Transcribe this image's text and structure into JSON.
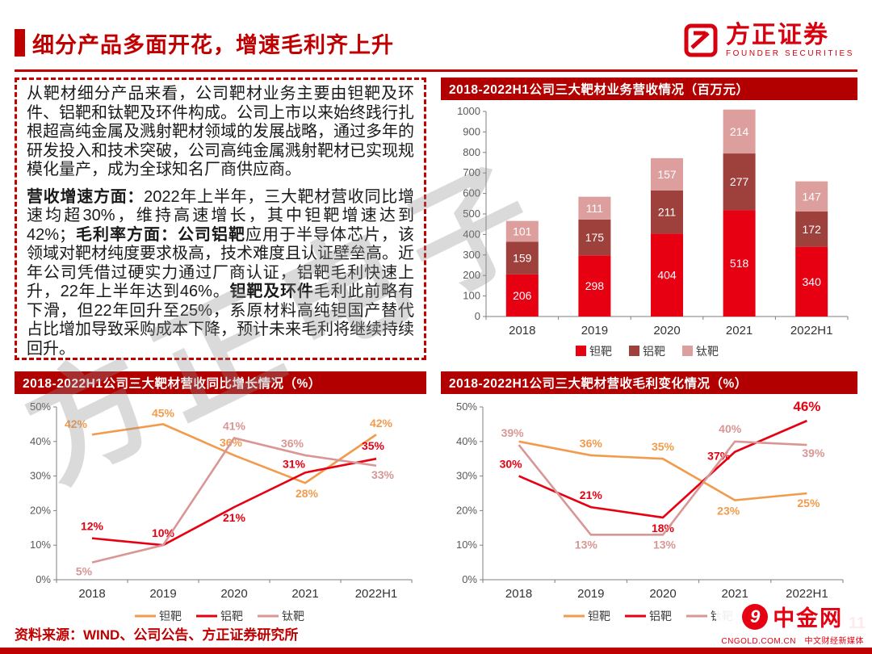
{
  "header": {
    "title": "细分产品多面开花，增速毛利齐上升",
    "logo_text": "方正证券",
    "logo_subtext": "FOUNDER SECURITIES"
  },
  "text_panel": {
    "paragraphs": [
      {
        "runs": [
          {
            "t": "从靶材细分产品来看，公司靶材业务主要由钽靶及环件、铝靶和钛靶及环件构成。公司上市以来始终践行扎根超高纯金属及溅射靶材领域的发展战略，通过多年的研发投入和技术突破，公司高纯金属溅射靶材已实现规模化量产，成为全球知名厂商供应商。",
            "b": false
          }
        ]
      },
      {
        "runs": [
          {
            "t": "营收增速方面：",
            "b": true
          },
          {
            "t": "2022年上半年，三大靶材营收同比增速均超30%，维持高速增长，其中钽靶增速达到42%；",
            "b": false
          },
          {
            "t": "毛利率方面：公司铝靶",
            "b": true
          },
          {
            "t": "应用于半导体芯片，该领域对靶材纯度要求极高，技术难度且认证壁垒高。近年公司凭借过硬实力通过厂商认证，铝靶毛利快速上升，22年上半年达到46%。",
            "b": false
          },
          {
            "t": "钽靶及环件",
            "b": true
          },
          {
            "t": "毛利此前略有下滑，但22年回升至25%，系原材料高纯钽国产替代占比增加导致采购成本下降，预计未来毛利将继续持续回升。",
            "b": false
          }
        ]
      }
    ]
  },
  "chart_data": [
    {
      "id": "revenue_bar",
      "type": "bar",
      "stacked": true,
      "title": "2018-2022H1公司三大靶材业务营收情况（百万元）",
      "categories": [
        "2018",
        "2019",
        "2020",
        "2021",
        "2022H1"
      ],
      "series": [
        {
          "name": "钽靶",
          "color": "#e60012",
          "values": [
            206,
            298,
            404,
            518,
            340
          ]
        },
        {
          "name": "铝靶",
          "color": "#9e403c",
          "values": [
            159,
            175,
            211,
            277,
            172
          ]
        },
        {
          "name": "钛靶",
          "color": "#dc9f9d",
          "values": [
            101,
            111,
            157,
            214,
            147
          ]
        }
      ],
      "ylim": [
        0,
        1000
      ],
      "y_step": 100,
      "grid": false,
      "legend_position": "bottom"
    },
    {
      "id": "growth_line",
      "type": "line",
      "title": "2018-2022H1公司三大靶材营收同比增长情况（%）",
      "categories": [
        "2018",
        "2019",
        "2020",
        "2021",
        "2022H1"
      ],
      "series": [
        {
          "name": "钽靶",
          "color": "#f29b4c",
          "values": [
            42,
            45,
            36,
            28,
            42
          ],
          "labels": [
            "42%",
            "45%",
            "36%",
            "28%",
            "42%"
          ],
          "offsets": [
            [
              -20,
              -8
            ],
            [
              0,
              -9
            ],
            [
              -4,
              -11
            ],
            [
              2,
              18
            ],
            [
              6,
              -9
            ]
          ]
        },
        {
          "name": "铝靶",
          "color": "#e60012",
          "values": [
            12,
            10,
            21,
            31,
            35
          ],
          "labels": [
            "12%",
            "10%",
            "21%",
            "31%",
            "35%"
          ],
          "offsets": [
            [
              0,
              -10
            ],
            [
              0,
              -10
            ],
            [
              0,
              18
            ],
            [
              -14,
              -6
            ],
            [
              -4,
              -11
            ]
          ]
        },
        {
          "name": "钛靶",
          "color": "#d99694",
          "values": [
            5,
            10,
            41,
            36,
            33
          ],
          "labels": [
            "5%",
            "",
            "41%",
            "36%",
            "33%"
          ],
          "offsets": [
            [
              -10,
              16
            ],
            [
              0,
              0
            ],
            [
              0,
              -10
            ],
            [
              -16,
              -10
            ],
            [
              8,
              16
            ]
          ]
        }
      ],
      "ylim": [
        0,
        50
      ],
      "y_step": 10,
      "percent": true,
      "grid": false,
      "legend_position": "bottom"
    },
    {
      "id": "margin_line",
      "type": "line",
      "title": "2018-2022H1公司三大靶材营收毛利变化情况（%）",
      "categories": [
        "2018",
        "2019",
        "2020",
        "2021",
        "2022H1"
      ],
      "series": [
        {
          "name": "钽靶",
          "color": "#f29b4c",
          "values": [
            40,
            36,
            35,
            23,
            25
          ],
          "labels": [
            "",
            "36%",
            "35%",
            "23%",
            "25%"
          ],
          "offsets": [
            [
              0,
              0
            ],
            [
              0,
              -10
            ],
            [
              0,
              -10
            ],
            [
              -8,
              18
            ],
            [
              2,
              17
            ]
          ]
        },
        {
          "name": "铝靶",
          "color": "#e60012",
          "values": [
            30,
            21,
            18,
            37,
            46
          ],
          "labels": [
            "30%",
            "21%",
            "18%",
            "37%",
            "46%"
          ],
          "offsets": [
            [
              -10,
              -10
            ],
            [
              0,
              -10
            ],
            [
              0,
              18
            ],
            [
              -20,
              10
            ],
            [
              0,
              -12
            ]
          ],
          "strong": 4
        },
        {
          "name": "钛靶",
          "color": "#d99694",
          "values": [
            39,
            13,
            13,
            40,
            39
          ],
          "labels": [
            "39%",
            "13%",
            "13%",
            "40%",
            "39%"
          ],
          "offsets": [
            [
              -8,
              -10
            ],
            [
              -6,
              17
            ],
            [
              2,
              17
            ],
            [
              -6,
              -11
            ],
            [
              8,
              15
            ]
          ]
        }
      ],
      "ylim": [
        0,
        50
      ],
      "y_step": 10,
      "percent": true,
      "grid": false,
      "legend_position": "bottom"
    }
  ],
  "watermark": {
    "text": "方正电子"
  },
  "footer": {
    "source": "资料来源：WIND、公司公告、方正证券研究所"
  },
  "page_number": "11",
  "cngold": {
    "icon_glyph": "9",
    "name": "中金网",
    "sub": "CNGOLD.COM.CN　中文财经新媒体"
  },
  "colors": {
    "brand_red": "#c00000",
    "chart_header_bg": "#b20000",
    "tantalum": "#e60012",
    "aluminum": "#9e403c",
    "titanium_bar": "#dc9f9d",
    "tantalum_line": "#f29b4c",
    "aluminum_line": "#e60012",
    "titanium_line": "#d99694"
  }
}
